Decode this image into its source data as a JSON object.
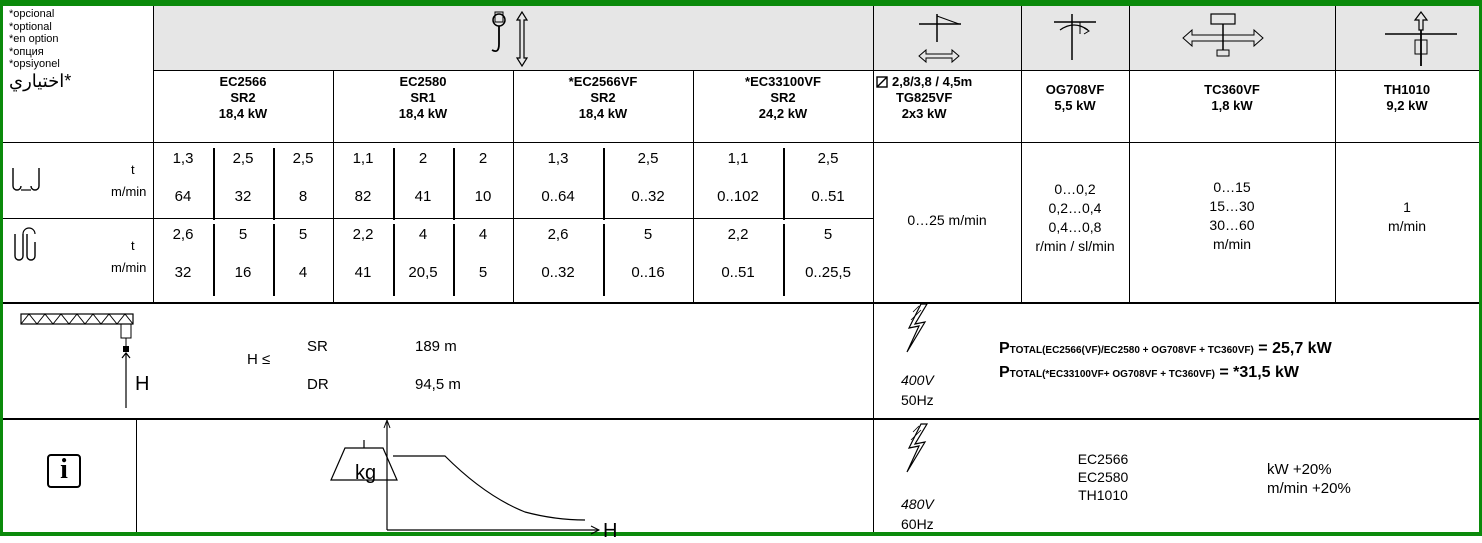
{
  "optional_labels": [
    "*opcional",
    "*optional",
    "*en option",
    "*опция",
    "*opsiyonel",
    "*اختياري"
  ],
  "hoist": {
    "icon": "hook-lift-icon",
    "motors": [
      {
        "name": "EC2566",
        "circuit": "SR2",
        "power": "18,4 kW"
      },
      {
        "name": "EC2580",
        "circuit": "SR1",
        "power": "18,4 kW"
      },
      {
        "name": "*EC2566VF",
        "circuit": "SR2",
        "power": "18,4 kW"
      },
      {
        "name": "*EC33100VF",
        "circuit": "SR2",
        "power": "24,2 kW"
      }
    ],
    "rows": [
      {
        "icon": "two-fall-icon",
        "unit_load": "t",
        "unit_speed": "m/min",
        "groups": [
          {
            "loads": [
              "1,3",
              "2,5",
              "2,5"
            ],
            "speeds": [
              "64",
              "32",
              "8"
            ]
          },
          {
            "loads": [
              "1,1",
              "2",
              "2"
            ],
            "speeds": [
              "82",
              "41",
              "10"
            ]
          },
          {
            "loads": [
              "1,3",
              "2,5"
            ],
            "speeds": [
              "0..64",
              "0..32"
            ]
          },
          {
            "loads": [
              "1,1",
              "2,5"
            ],
            "speeds": [
              "0..102",
              "0..51"
            ]
          }
        ]
      },
      {
        "icon": "four-fall-icon",
        "unit_load": "t",
        "unit_speed": "m/min",
        "groups": [
          {
            "loads": [
              "2,6",
              "5",
              "5"
            ],
            "speeds": [
              "32",
              "16",
              "4"
            ]
          },
          {
            "loads": [
              "2,2",
              "4",
              "4"
            ],
            "speeds": [
              "41",
              "20,5",
              "5"
            ]
          },
          {
            "loads": [
              "2,6",
              "5"
            ],
            "speeds": [
              "0..32",
              "0..16"
            ]
          },
          {
            "loads": [
              "2,2",
              "5"
            ],
            "speeds": [
              "0..51",
              "0..25,5"
            ]
          }
        ]
      }
    ]
  },
  "trolley": {
    "icon": "trolley-travel-icon",
    "spec": "2,8/3,8 / 4,5m",
    "motor": "TG825VF",
    "power": "2x3 kW",
    "speed": "0…25 m/min"
  },
  "slewing": {
    "icon": "slewing-icon",
    "motor": "OG708VF",
    "power": "5,5 kW",
    "speeds": [
      "0…0,2",
      "0,2…0,4",
      "0,4…0,8"
    ],
    "unit": "r/min / sl/min"
  },
  "travel": {
    "icon": "crane-travel-icon",
    "motor": "TC360VF",
    "power": "1,8 kW",
    "speeds": [
      "0…15",
      "15…30",
      "30…60"
    ],
    "unit": "m/min"
  },
  "climbing": {
    "icon": "climbing-icon",
    "motor": "TH1010",
    "power": "9,2 kW",
    "speed": "1",
    "unit": "m/min"
  },
  "height": {
    "icon": "crane-height-icon",
    "symbol": "H",
    "leq": "H ≤",
    "rows": [
      {
        "label": "SR",
        "value": "189 m"
      },
      {
        "label": "DR",
        "value": "94,5 m"
      }
    ]
  },
  "power": {
    "icon": "lightning-icon",
    "voltage": "400V",
    "freq": "50Hz",
    "lines": [
      {
        "p": "P",
        "sub": "TOTAL(EC2566(VF)/EC2580 + OG708VF + TC360VF)",
        "value": " = 25,7 kW"
      },
      {
        "p": "P",
        "sub": "TOTAL(*EC33100VF+ OG708VF + TC360VF)",
        "value": " = *31,5 kW"
      }
    ]
  },
  "info": {
    "icon": "info-icon",
    "graph_icon": "load-curve-icon",
    "weight": "kg",
    "axis": "H",
    "voltage": "480V",
    "freq": "60Hz",
    "models": [
      "EC2566",
      "EC2580",
      "TH1010"
    ],
    "increases": [
      "kW +20%",
      "m/min +20%"
    ]
  }
}
